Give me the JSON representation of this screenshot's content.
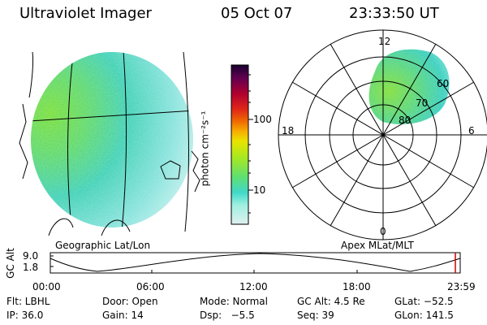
{
  "header": {
    "instrument": "Ultraviolet Imager",
    "date": "05 Oct 07",
    "time": "23:33:50 UT"
  },
  "geo_panel": {
    "label": "Geographic Lat/Lon"
  },
  "polar_panel": {
    "label": "Apex MLat/MLT",
    "mlt_labels": {
      "top": "12",
      "left": "18",
      "right": "6",
      "bottom": "0"
    },
    "lat_labels": [
      "60",
      "70",
      "80"
    ]
  },
  "colorbar": {
    "label": "photon cm⁻²s⁻¹",
    "ticks": [
      "100",
      "10"
    ],
    "colors": [
      "#e0f0f0",
      "#a0f0e0",
      "#60e0d0",
      "#30d8c8",
      "#70e050",
      "#a0e820",
      "#d0ec00",
      "#f0e000",
      "#f8b000",
      "#f07000",
      "#e03010",
      "#c00020",
      "#900040",
      "#500050",
      "#200040"
    ]
  },
  "altitude_plot": {
    "ylabel": "GC Alt",
    "yticks": [
      "9.0",
      "1.8"
    ],
    "xticks": [
      "00:00",
      "06:00",
      "12:00",
      "18:00",
      "23:59"
    ],
    "marker_color": "#cc0000"
  },
  "footer": {
    "row1": {
      "filter": "Flt: LBHL",
      "door": "Door: Open",
      "mode": "Mode: Normal",
      "gc_alt": "GC Alt: 4.5 Re",
      "glat": "GLat: −52.5"
    },
    "row2": {
      "ip": "IP: 36.0",
      "gain": "Gain: 14",
      "dsp": "Dsp:   −5.5",
      "seq": "Seq: 39",
      "glon": "GLon: 141.5"
    }
  }
}
